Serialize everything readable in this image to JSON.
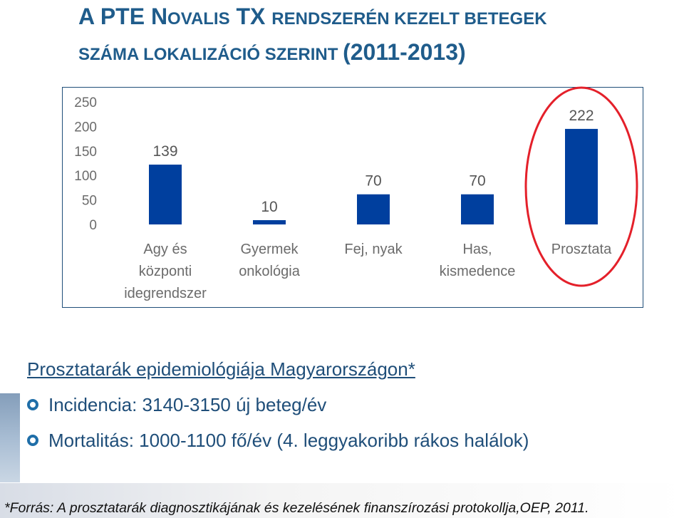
{
  "slide": {
    "title_line1_a": "A PTE N",
    "title_line1_b": "OVALIS",
    "title_line1_c": " TX ",
    "title_line1_d": "RENDSZERÉN KEZELT BETEGEK",
    "title_line2_a": "SZÁMA LOKALIZÁCIÓ SZERINT ",
    "title_line2_b": "(2011-2013)"
  },
  "chart_data": {
    "type": "bar",
    "categories": [
      [
        "Agy és",
        "központi",
        "idegrendszer"
      ],
      [
        "Gyermek",
        "onkológia"
      ],
      [
        "Fej, nyak"
      ],
      [
        "Has,",
        "kismedence"
      ],
      [
        "Prosztata"
      ]
    ],
    "values": [
      139,
      10,
      70,
      70,
      222
    ],
    "data_labels": [
      "139",
      "10",
      "70",
      "70",
      "222"
    ],
    "y_ticks": [
      "250",
      "200",
      "150",
      "100",
      "50",
      "0"
    ],
    "ylim": [
      0,
      250
    ],
    "grid": false,
    "highlight_index": 4,
    "bar_color": "#003f9e",
    "highlight_color": "#e4202a"
  },
  "epidemiology": {
    "heading": "Prosztatarák epidemiológiája Magyarországon*",
    "bullets": [
      "Incidencia: 3140-3150 új beteg/év",
      "Mortalitás: 1000-1100 fő/év (4. leggyakoribb rákos halálok)"
    ]
  },
  "footnote": "*Forrás: A prosztatarák diagnosztikájának és kezelésének finanszírozási protokollja,OEP, 2011."
}
